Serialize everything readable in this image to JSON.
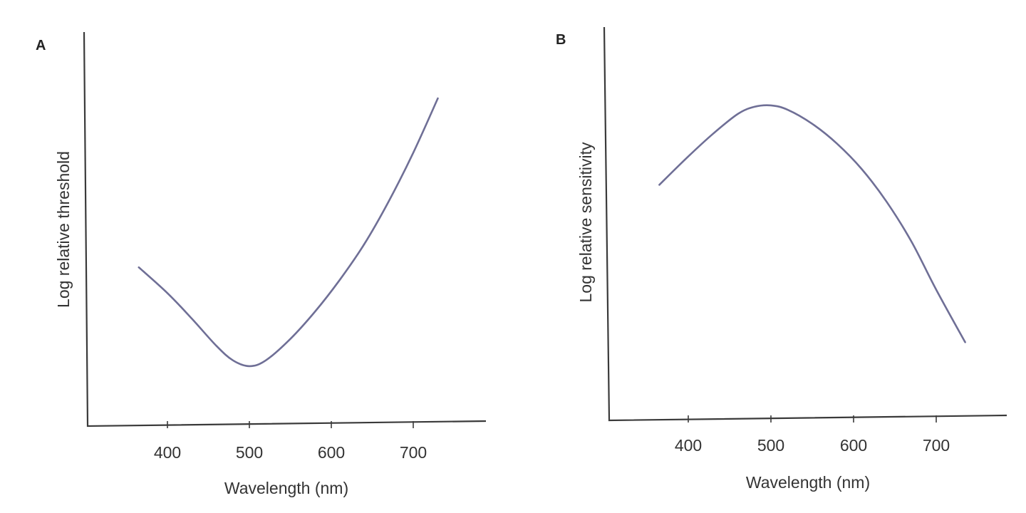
{
  "chart_data": [
    {
      "panel": "A",
      "type": "line",
      "title": "",
      "xlabel": "Wavelength (nm)",
      "ylabel": "Log relative threshold",
      "xlim": [
        300,
        790
      ],
      "ylim": [
        0,
        1
      ],
      "xticks": [
        400,
        500,
        600,
        700
      ],
      "yticks": [],
      "grid": false,
      "series": [
        {
          "name": "threshold",
          "x": [
            365,
            400,
            430,
            460,
            480,
            500,
            520,
            550,
            580,
            610,
            640,
            670,
            700,
            730
          ],
          "y": [
            0.41,
            0.32,
            0.23,
            0.135,
            0.085,
            0.065,
            0.085,
            0.16,
            0.255,
            0.365,
            0.49,
            0.64,
            0.81,
            1.0
          ]
        }
      ]
    },
    {
      "panel": "B",
      "type": "line",
      "title": "",
      "xlabel": "Wavelength (nm)",
      "ylabel": "Log relative sensitivity",
      "xlim": [
        300,
        790
      ],
      "ylim": [
        0,
        1
      ],
      "xticks": [
        400,
        500,
        600,
        700
      ],
      "yticks": [],
      "grid": false,
      "series": [
        {
          "name": "sensitivity",
          "x": [
            365,
            400,
            430,
            460,
            480,
            500,
            520,
            550,
            580,
            610,
            640,
            670,
            700,
            735
          ],
          "y": [
            0.68,
            0.78,
            0.86,
            0.93,
            0.955,
            0.96,
            0.945,
            0.895,
            0.825,
            0.735,
            0.62,
            0.48,
            0.31,
            0.125
          ]
        }
      ]
    }
  ]
}
